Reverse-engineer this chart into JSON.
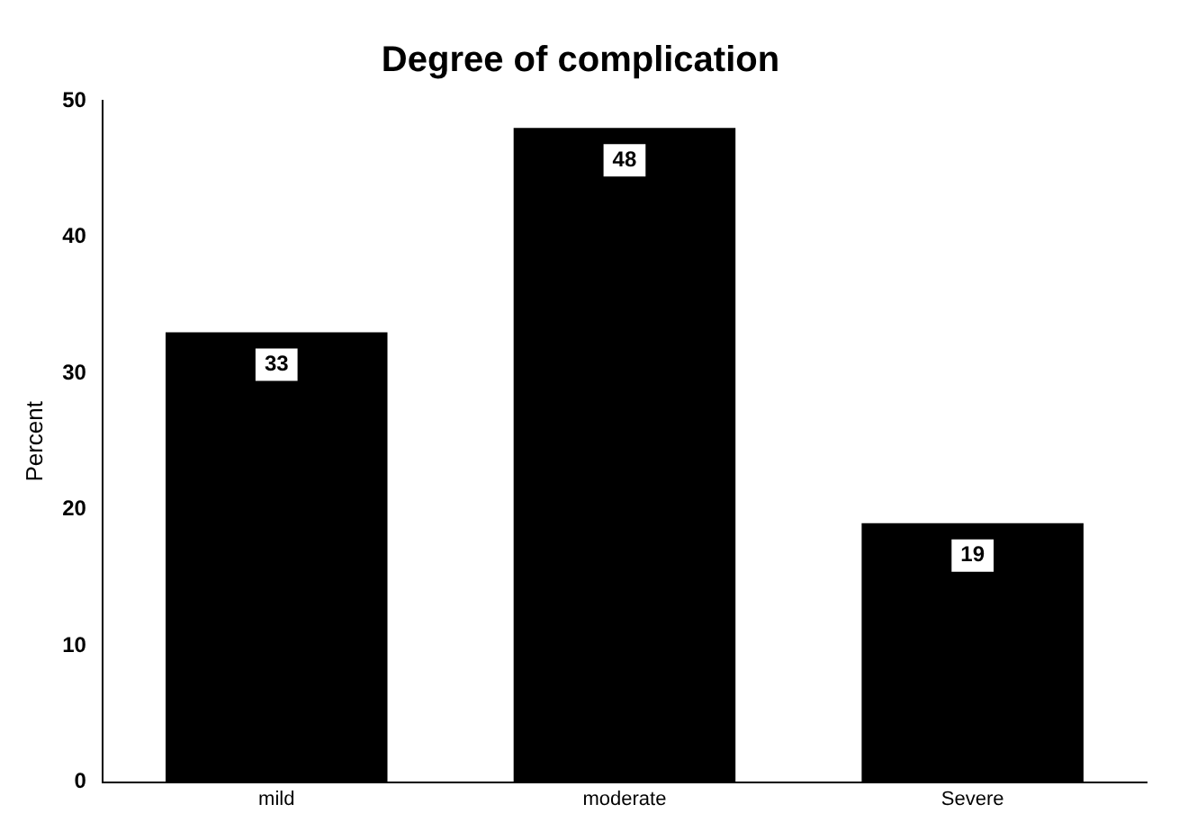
{
  "chart_data": {
    "type": "bar",
    "title": "Degree of complication",
    "ylabel": "Percent",
    "categories": [
      "mild",
      "moderate",
      "Severe"
    ],
    "values": [
      33,
      48,
      19
    ],
    "color": "#000000",
    "ylim": [
      0,
      50
    ],
    "yticks": [
      0,
      10,
      20,
      30,
      40,
      50
    ],
    "grid": false,
    "legend": false,
    "data_labels": true
  }
}
